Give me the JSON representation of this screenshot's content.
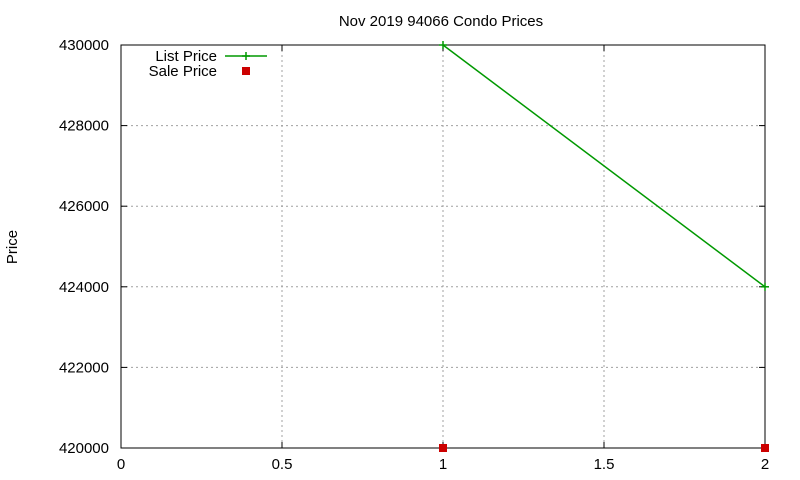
{
  "chart_data": {
    "type": "line",
    "title": "Nov 2019 94066 Condo Prices",
    "xlabel": "",
    "ylabel": "Price",
    "xlim": [
      0,
      2
    ],
    "ylim": [
      420000,
      430000
    ],
    "xticks": [
      "0",
      "0.5",
      "1",
      "1.5",
      "2"
    ],
    "yticks": [
      "420000",
      "422000",
      "424000",
      "426000",
      "428000",
      "430000"
    ],
    "grid": true,
    "legend_position": "top-left",
    "series": [
      {
        "name": "List Price",
        "style": "line-with-plus-markers",
        "color": "#009900",
        "points": [
          {
            "x": 1,
            "y": 430000
          },
          {
            "x": 2,
            "y": 424000
          }
        ]
      },
      {
        "name": "Sale Price",
        "style": "square-markers",
        "color": "#cc0000",
        "points": [
          {
            "x": 1,
            "y": 420000
          },
          {
            "x": 2,
            "y": 420000
          }
        ]
      }
    ]
  }
}
